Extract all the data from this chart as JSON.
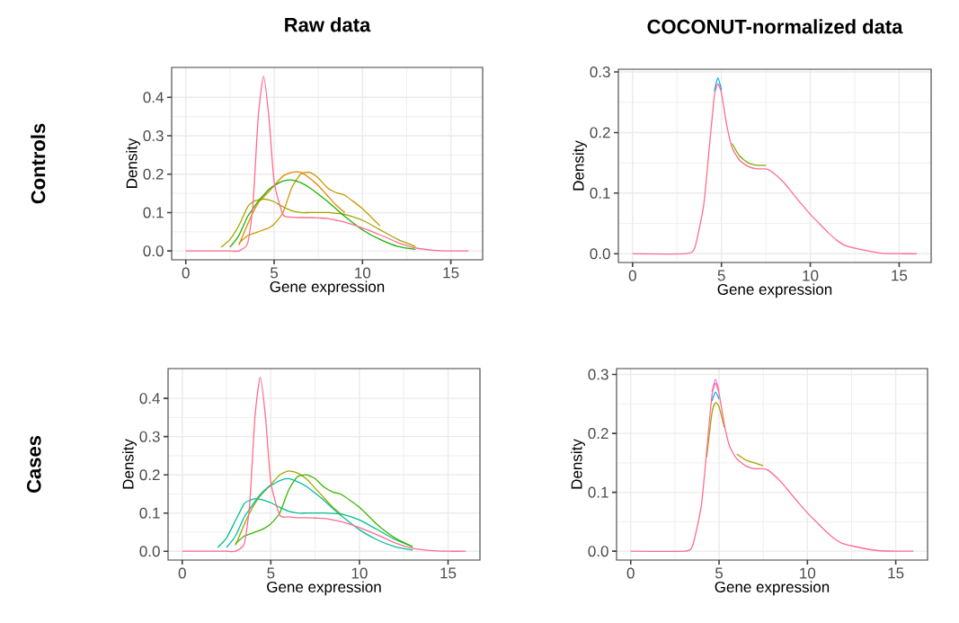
{
  "chart_data": [
    {
      "type": "line",
      "title": "Raw data",
      "xlabel": "Gene expression",
      "ylabel": "Density",
      "annotations": [
        "Controls"
      ],
      "grid": true,
      "xlim": [
        -0.8,
        16.8
      ],
      "ylim": [
        -0.023,
        0.478
      ],
      "xticks": [
        0,
        5,
        10,
        15
      ],
      "yticks": [
        {
          "value": 0,
          "label": "0.0"
        },
        {
          "value": 0.1,
          "label": "0.1"
        },
        {
          "value": 0.2,
          "label": "0.2"
        },
        {
          "value": 0.3,
          "label": "0.3"
        },
        {
          "value": 0.4,
          "label": "0.4"
        }
      ],
      "x": [
        0,
        1.5,
        2,
        2.5,
        3,
        3.5,
        3.8,
        4.1,
        4.4,
        4.7,
        5,
        5.5,
        6,
        6.5,
        7,
        7.5,
        8,
        8.5,
        9,
        10,
        11,
        12,
        13,
        14,
        15,
        16
      ],
      "series": [
        {
          "color": "#a3a500",
          "values": [
            null,
            null,
            0.01,
            0.03,
            0.066,
            0.115,
            0.128,
            0.133,
            0.135,
            0.133,
            0.128,
            0.115,
            0.105,
            0.1,
            0.1,
            0.1,
            0.1,
            0.098,
            0.095,
            0.08,
            0.055,
            0.03,
            0.012,
            null,
            null,
            null
          ]
        },
        {
          "color": "#e58700",
          "values": [
            null,
            null,
            null,
            null,
            0.015,
            0.07,
            0.1,
            0.125,
            0.14,
            0.155,
            0.17,
            0.195,
            0.205,
            0.205,
            0.19,
            0.17,
            0.145,
            0.12,
            0.1,
            null,
            null,
            null,
            null,
            null,
            null,
            null
          ]
        },
        {
          "color": "#c99800",
          "values": [
            null,
            null,
            null,
            null,
            0.02,
            0.04,
            0.045,
            0.05,
            0.055,
            0.06,
            0.07,
            0.1,
            0.165,
            0.2,
            0.205,
            0.19,
            0.165,
            0.152,
            0.145,
            0.11,
            0.065,
            null,
            null,
            null,
            null,
            null
          ]
        },
        {
          "color": "#1db200",
          "values": [
            null,
            null,
            null,
            0.01,
            0.04,
            0.09,
            0.11,
            0.13,
            0.145,
            0.16,
            0.17,
            0.182,
            0.185,
            0.178,
            0.165,
            0.148,
            0.13,
            0.11,
            0.09,
            0.055,
            0.03,
            0.012,
            0.004,
            null,
            null,
            null
          ]
        },
        {
          "color": "#ff6c91",
          "values": [
            0,
            0,
            0,
            0,
            0,
            0.02,
            0.12,
            0.35,
            0.455,
            0.35,
            0.18,
            0.095,
            0.088,
            0.087,
            0.087,
            0.086,
            0.085,
            0.08,
            0.075,
            0.06,
            0.042,
            0.022,
            0.008,
            0.002,
            0,
            0
          ]
        }
      ]
    },
    {
      "type": "line",
      "title": "COCONUT-normalized data",
      "xlabel": "Gene expression",
      "ylabel": "Density",
      "grid": true,
      "xlim": [
        -0.8,
        16.8
      ],
      "ylim": [
        -0.0145,
        0.3045
      ],
      "xticks": [
        0,
        5,
        10,
        15
      ],
      "yticks": [
        {
          "value": 0,
          "label": "0.0"
        },
        {
          "value": 0.1,
          "label": "0.1"
        },
        {
          "value": 0.2,
          "label": "0.2"
        },
        {
          "value": 0.3,
          "label": "0.3"
        }
      ],
      "x": [
        0,
        3,
        3.5,
        4,
        4.3,
        4.6,
        4.8,
        5,
        5.3,
        5.6,
        6,
        6.5,
        7,
        7.5,
        7.8,
        8.5,
        9,
        9.5,
        10,
        10.5,
        11,
        11.5,
        12,
        13,
        14,
        15,
        16
      ],
      "series": [
        {
          "color": "#7cae00",
          "values": [
            null,
            null,
            null,
            null,
            null,
            null,
            null,
            null,
            null,
            0.182,
            0.162,
            0.15,
            0.146,
            0.146,
            null,
            null,
            null,
            null,
            null,
            null,
            null,
            null,
            null,
            null,
            null,
            null,
            null
          ]
        },
        {
          "color": "#00a9ff",
          "values": [
            null,
            null,
            null,
            null,
            null,
            0.268,
            0.29,
            0.27,
            null,
            null,
            null,
            null,
            null,
            null,
            null,
            null,
            null,
            null,
            null,
            null,
            null,
            null,
            null,
            null,
            null,
            null,
            null
          ]
        },
        {
          "color": "#ff6c91",
          "values": [
            0,
            0,
            0.01,
            0.08,
            0.17,
            0.26,
            0.28,
            0.265,
            0.212,
            0.175,
            0.155,
            0.144,
            0.14,
            0.14,
            0.136,
            0.118,
            0.1,
            0.082,
            0.065,
            0.05,
            0.035,
            0.022,
            0.013,
            0.006,
            0.001,
            0,
            0
          ]
        }
      ]
    },
    {
      "type": "line",
      "xlabel": "Gene expression",
      "ylabel": "Density",
      "annotations": [
        "Cases"
      ],
      "grid": true,
      "xlim": [
        -0.8,
        16.8
      ],
      "ylim": [
        -0.023,
        0.478
      ],
      "xticks": [
        0,
        5,
        10,
        15
      ],
      "yticks": [
        {
          "value": 0,
          "label": "0.0"
        },
        {
          "value": 0.1,
          "label": "0.1"
        },
        {
          "value": 0.2,
          "label": "0.2"
        },
        {
          "value": 0.3,
          "label": "0.3"
        },
        {
          "value": 0.4,
          "label": "0.4"
        }
      ],
      "x": [
        0,
        1.5,
        2,
        2.5,
        3,
        3.5,
        3.8,
        4.1,
        4.4,
        4.7,
        5,
        5.5,
        6,
        6.5,
        7,
        7.5,
        8,
        8.5,
        9,
        10,
        11,
        12,
        13,
        14,
        15,
        16
      ],
      "series": [
        {
          "color": "#00c08b",
          "values": [
            null,
            null,
            0.01,
            0.035,
            0.08,
            0.125,
            0.133,
            0.137,
            0.136,
            0.132,
            0.127,
            0.115,
            0.105,
            0.1,
            0.1,
            0.1,
            0.1,
            0.099,
            0.097,
            0.082,
            0.057,
            0.031,
            0.012,
            null,
            null,
            null
          ]
        },
        {
          "color": "#a3a500",
          "values": [
            null,
            null,
            null,
            null,
            0.015,
            0.07,
            0.1,
            0.125,
            0.145,
            0.16,
            0.175,
            0.2,
            0.21,
            0.205,
            0.19,
            0.165,
            0.14,
            0.115,
            0.095,
            null,
            null,
            null,
            null,
            null,
            null,
            null
          ]
        },
        {
          "color": "#39b600",
          "values": [
            null,
            null,
            null,
            null,
            0.02,
            0.04,
            0.045,
            0.05,
            0.055,
            0.062,
            0.072,
            0.1,
            0.16,
            0.195,
            0.2,
            0.19,
            0.168,
            0.155,
            0.148,
            0.115,
            0.07,
            0.035,
            0.012,
            null,
            null,
            null
          ]
        },
        {
          "color": "#00bfa0",
          "values": [
            null,
            null,
            null,
            0.01,
            0.04,
            0.09,
            0.11,
            0.13,
            0.148,
            0.162,
            0.172,
            0.185,
            0.19,
            0.182,
            0.17,
            0.152,
            0.133,
            0.112,
            0.092,
            0.056,
            0.03,
            0.012,
            0.003,
            null,
            null,
            null
          ]
        },
        {
          "color": "#ff6c91",
          "values": [
            0,
            0,
            0,
            0,
            0,
            0.02,
            0.12,
            0.35,
            0.455,
            0.35,
            0.18,
            0.095,
            0.09,
            0.088,
            0.088,
            0.087,
            0.086,
            0.082,
            0.077,
            0.062,
            0.043,
            0.022,
            0.008,
            0.002,
            0,
            0
          ]
        }
      ]
    },
    {
      "type": "line",
      "xlabel": "Gene expression",
      "ylabel": "Density",
      "grid": true,
      "xlim": [
        -0.8,
        16.8
      ],
      "ylim": [
        -0.015,
        0.31
      ],
      "xticks": [
        0,
        5,
        10,
        15
      ],
      "yticks": [
        {
          "value": 0,
          "label": "0.0"
        },
        {
          "value": 0.1,
          "label": "0.1"
        },
        {
          "value": 0.2,
          "label": "0.2"
        },
        {
          "value": 0.3,
          "label": "0.3"
        }
      ],
      "x": [
        0,
        3,
        3.5,
        4,
        4.3,
        4.6,
        4.8,
        5,
        5.3,
        5.6,
        6,
        6.5,
        7,
        7.5,
        7.8,
        8.5,
        9,
        9.5,
        10,
        10.5,
        11,
        11.5,
        12,
        13,
        14,
        15,
        16
      ],
      "series": [
        {
          "color": "#a3a500",
          "values": [
            null,
            null,
            null,
            null,
            0.16,
            0.235,
            0.252,
            0.245,
            0.21,
            null,
            0.165,
            0.155,
            0.15,
            0.145,
            null,
            null,
            null,
            null,
            null,
            null,
            null,
            null,
            null,
            null,
            null,
            null,
            null
          ]
        },
        {
          "color": "#00a9ff",
          "values": [
            null,
            null,
            null,
            null,
            null,
            0.255,
            0.27,
            0.258,
            null,
            null,
            null,
            null,
            null,
            null,
            null,
            null,
            null,
            null,
            null,
            null,
            null,
            null,
            null,
            null,
            null,
            null,
            null
          ]
        },
        {
          "color": "#e76bf3",
          "values": [
            null,
            null,
            null,
            null,
            null,
            0.27,
            0.292,
            0.272,
            null,
            null,
            null,
            null,
            null,
            null,
            null,
            null,
            null,
            null,
            null,
            null,
            null,
            null,
            null,
            null,
            null,
            null,
            null
          ]
        },
        {
          "color": "#ff6c91",
          "values": [
            0,
            0,
            0.009,
            0.078,
            0.17,
            0.265,
            0.285,
            0.268,
            0.215,
            0.178,
            0.157,
            0.145,
            0.14,
            0.14,
            0.137,
            0.118,
            0.1,
            0.082,
            0.065,
            0.05,
            0.035,
            0.022,
            0.013,
            0.006,
            0.001,
            0,
            0
          ]
        }
      ]
    }
  ]
}
